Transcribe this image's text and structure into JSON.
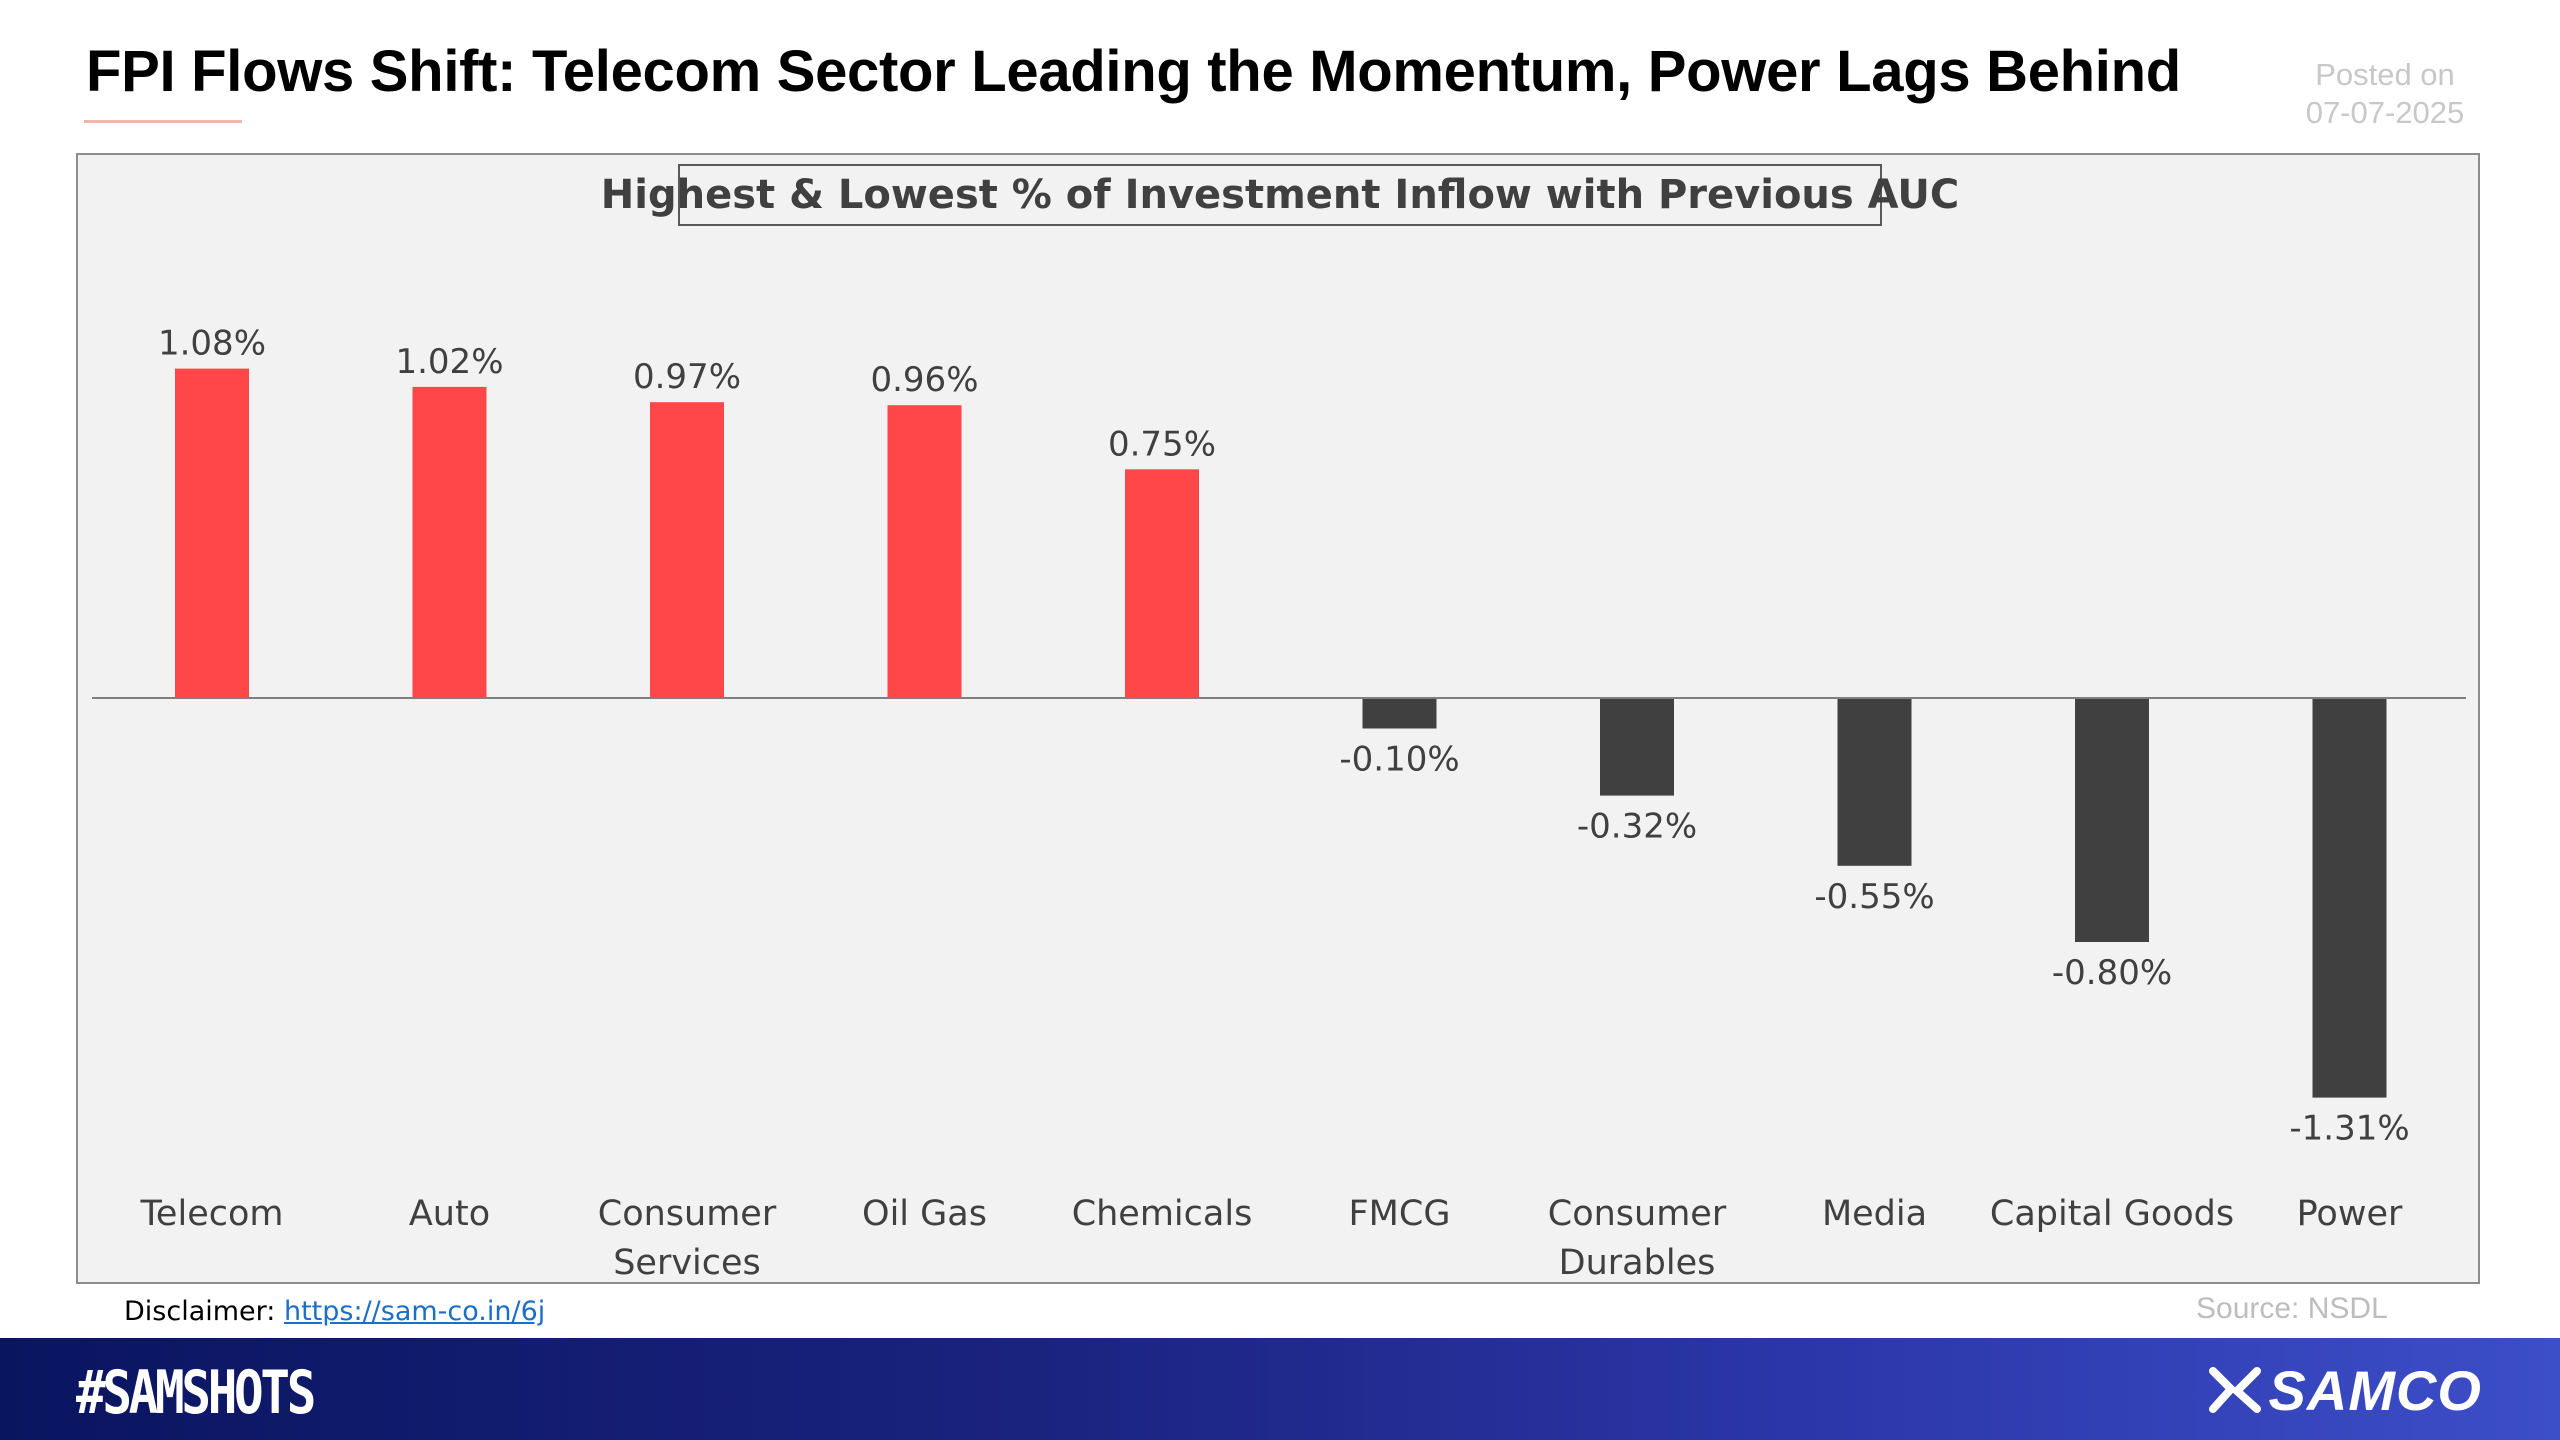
{
  "header": {
    "title": "FPI Flows Shift: Telecom Sector Leading the Momentum, Power Lags Behind",
    "posted_label": "Posted on",
    "posted_date": "07-07-2025"
  },
  "footer": {
    "disclaimer_label": "Disclaimer:",
    "disclaimer_link": "https://sam-co.in/6j",
    "source": "Source: NSDL",
    "hashtag": "#SAMSHOTS",
    "brand": "SAMCO"
  },
  "colors": {
    "positive": "#ff474a",
    "negative": "#404040",
    "baseline": "#7f7f7f",
    "label": "#404040"
  },
  "chart_data": {
    "type": "bar",
    "title": "Highest & Lowest % of Investment Inflow with Previous AUC",
    "categories": [
      [
        "Telecom"
      ],
      [
        "Auto"
      ],
      [
        "Consumer",
        "Services"
      ],
      [
        "Oil Gas"
      ],
      [
        "Chemicals"
      ],
      [
        "FMCG"
      ],
      [
        "Consumer",
        "Durables"
      ],
      [
        "Media"
      ],
      [
        "Capital Goods"
      ],
      [
        "Power"
      ]
    ],
    "values": [
      1.08,
      1.02,
      0.97,
      0.96,
      0.75,
      -0.1,
      -0.32,
      -0.55,
      -0.8,
      -1.31
    ],
    "value_labels": [
      "1.08%",
      "1.02%",
      "0.97%",
      "0.96%",
      "0.75%",
      "-0.10%",
      "-0.32%",
      "-0.55%",
      "-0.80%",
      "-1.31%"
    ],
    "unit": "%",
    "grid": false,
    "legend": "none"
  }
}
